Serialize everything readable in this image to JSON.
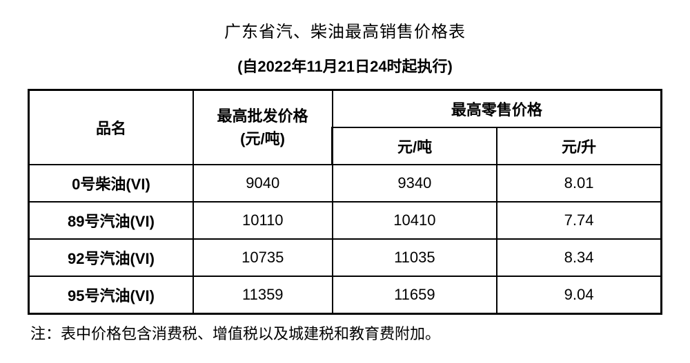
{
  "title": "广东省汽、柴油最高销售价格表",
  "subtitle": "(自2022年11月21日24时起执行)",
  "headers": {
    "name": "品名",
    "wholesale": "最高批发价格",
    "wholesale_unit": "(元/吨)",
    "retail": "最高零售价格",
    "retail_per_ton": "元/吨",
    "retail_per_liter": "元/升"
  },
  "rows": [
    {
      "name": "0号柴油(VI)",
      "wholesale": "9040",
      "retail_ton": "9340",
      "retail_liter": "8.01"
    },
    {
      "name": "89号汽油(VI)",
      "wholesale": "10110",
      "retail_ton": "10410",
      "retail_liter": "7.74"
    },
    {
      "name": "92号汽油(VI)",
      "wholesale": "10735",
      "retail_ton": "11035",
      "retail_liter": "8.34"
    },
    {
      "name": "95号汽油(VI)",
      "wholesale": "11359",
      "retail_ton": "11659",
      "retail_liter": "9.04"
    }
  ],
  "footnote": "注：表中价格包含消费税、增值税以及城建税和教育费附加。",
  "style": {
    "background_color": "#ffffff",
    "text_color": "#000000",
    "border_color": "#000000",
    "title_fontsize": 24,
    "subtitle_fontsize": 22,
    "cell_fontsize": 22,
    "footnote_fontsize": 22,
    "column_widths_pct": [
      26,
      22,
      26,
      26
    ]
  }
}
